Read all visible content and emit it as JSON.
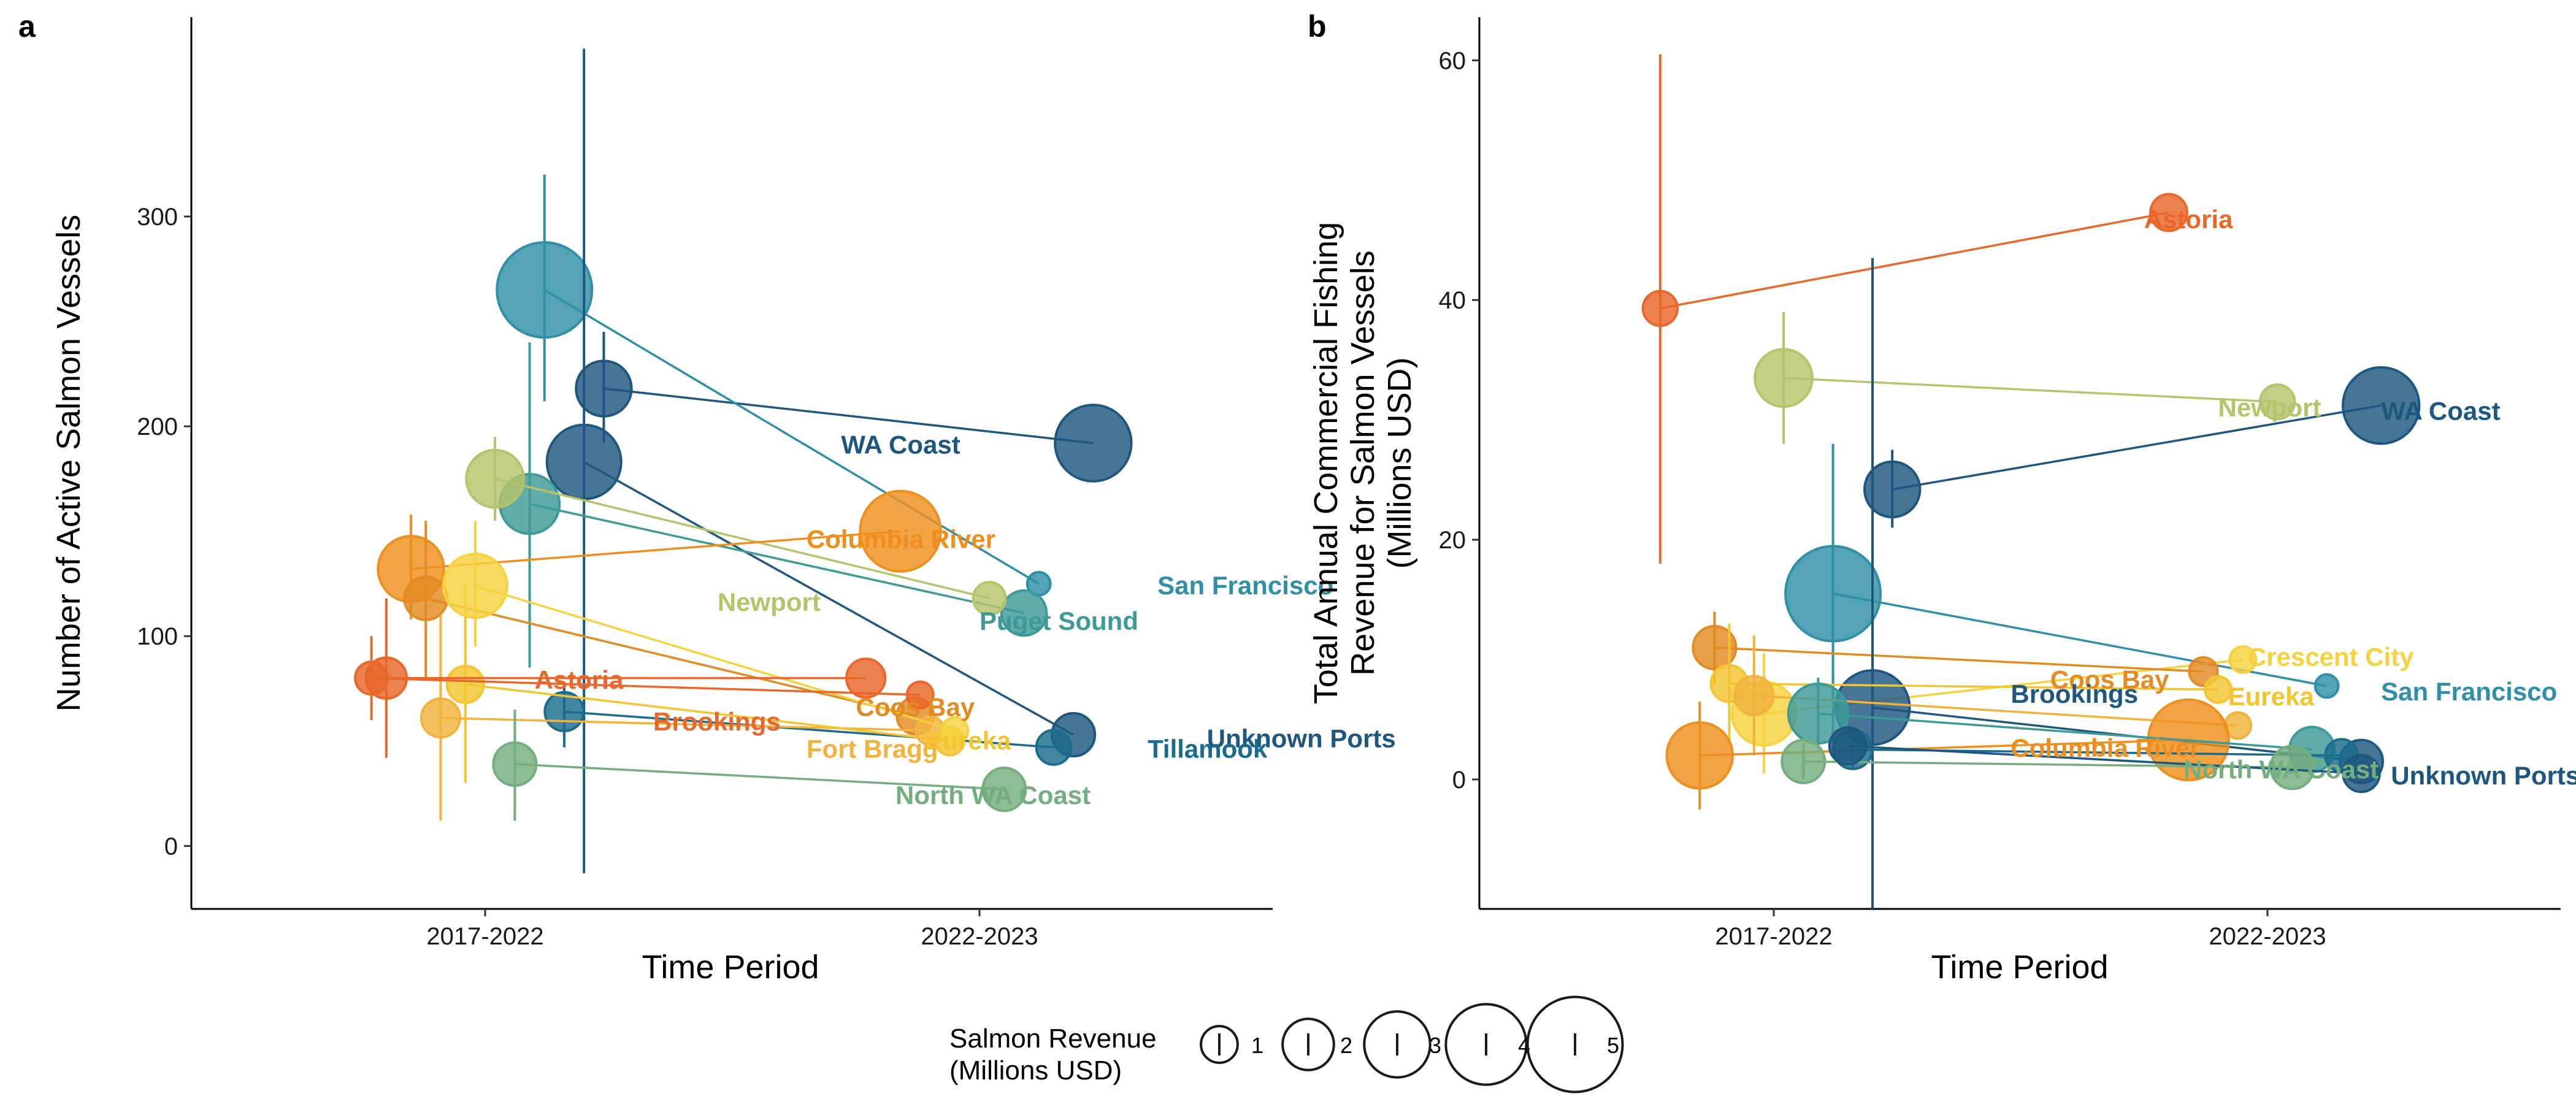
{
  "chart_data": [
    {
      "panel": "a",
      "type": "scatter",
      "xlabel": "Time Period",
      "ylabel": "Number of Active Salmon Vessels",
      "x_categories": [
        "2017-2022",
        "2022-2023"
      ],
      "ylim": [
        -30,
        395
      ],
      "yticks": [
        0,
        100,
        200,
        300
      ],
      "grid": false,
      "series": [
        {
          "name": "WA Coast",
          "color": "#1d5780",
          "label_pos": [
            1.72,
            187
          ],
          "points": [
            {
              "x": 1.24,
              "y": 218,
              "lo": 192,
              "hi": 245,
              "rev": 1.6
            },
            {
              "x": 2.23,
              "y": 192,
              "rev": 2.6
            }
          ]
        },
        {
          "name": "San Francisco",
          "color": "#2e8fa6",
          "label_pos": [
            2.36,
            120
          ],
          "points": [
            {
              "x": 1.12,
              "y": 265,
              "lo": 212,
              "hi": 320,
              "rev": 3.5
            },
            {
              "x": 2.12,
              "y": 125,
              "rev": 0.05
            }
          ]
        },
        {
          "name": "Unknown Ports",
          "color": "#1d5780",
          "label_pos": [
            2.46,
            47
          ],
          "points": [
            {
              "x": 1.2,
              "y": 183,
              "lo": -13,
              "hi": 380,
              "rev": 2.5
            },
            {
              "x": 2.19,
              "y": 53,
              "rev": 1.0
            }
          ]
        },
        {
          "name": "Tillamook",
          "color": "#1b6b8c",
          "label_pos": [
            2.34,
            42
          ],
          "points": [
            {
              "x": 1.16,
              "y": 64,
              "lo": 47,
              "hi": 78,
              "rev": 0.8
            },
            {
              "x": 2.15,
              "y": 47,
              "rev": 0.6
            }
          ]
        },
        {
          "name": "Puget Sound",
          "color": "#3d9a97",
          "label_pos": [
            2.0,
            103
          ],
          "points": [
            {
              "x": 1.09,
              "y": 163,
              "lo": 85,
              "hi": 240,
              "rev": 1.8
            },
            {
              "x": 2.09,
              "y": 111,
              "rev": 1.1
            }
          ]
        },
        {
          "name": "Newport",
          "color": "#b5c46a",
          "label_pos": [
            1.47,
            112
          ],
          "points": [
            {
              "x": 1.02,
              "y": 175,
              "lo": 155,
              "hi": 195,
              "rev": 1.7
            },
            {
              "x": 2.02,
              "y": 118,
              "rev": 0.5
            }
          ]
        },
        {
          "name": "Columbia River",
          "color": "#ee8f1d",
          "label_pos": [
            1.65,
            142
          ],
          "points": [
            {
              "x": 0.85,
              "y": 132,
              "lo": 108,
              "hi": 158,
              "rev": 2.1
            },
            {
              "x": 1.84,
              "y": 150,
              "rev": 2.8
            }
          ]
        },
        {
          "name": "Coos Bay",
          "color": "#e38a22",
          "label_pos": [
            1.75,
            62
          ],
          "points": [
            {
              "x": 0.88,
              "y": 118,
              "lo": 80,
              "hi": 155,
              "rev": 1.0
            },
            {
              "x": 1.87,
              "y": 62,
              "rev": 0.7
            }
          ]
        },
        {
          "name": "Fort Bragg",
          "color": "#f2b33d",
          "label_pos": [
            1.65,
            42
          ],
          "points": [
            {
              "x": 0.91,
              "y": 61,
              "lo": 12,
              "hi": 110,
              "rev": 0.8
            },
            {
              "x": 1.9,
              "y": 55,
              "rev": 0.3
            }
          ]
        },
        {
          "name": "Eureka",
          "color": "#f4c430",
          "label_pos": [
            1.89,
            46
          ],
          "points": [
            {
              "x": 0.96,
              "y": 77,
              "lo": 30,
              "hi": 125,
              "rev": 0.7
            },
            {
              "x": 1.94,
              "y": 50,
              "rev": 0.3
            }
          ]
        },
        {
          "name": "Crescent City",
          "color": "#f6d23f",
          "points": [
            {
              "x": 0.98,
              "y": 124,
              "lo": 95,
              "hi": 155,
              "rev": 2.0
            },
            {
              "x": 1.95,
              "y": 55,
              "rev": 0.2
            }
          ]
        },
        {
          "name": "Astoria",
          "color": "#e8672a",
          "label_pos": [
            1.1,
            75
          ],
          "points": [
            {
              "x": 0.8,
              "y": 80,
              "lo": 42,
              "hi": 118,
              "rev": 0.9
            },
            {
              "x": 1.77,
              "y": 80,
              "rev": 0.8
            }
          ]
        },
        {
          "name": "Brookings",
          "color": "#e8672a",
          "label_pos": [
            1.34,
            55
          ],
          "points": [
            {
              "x": 0.77,
              "y": 80,
              "lo": 60,
              "hi": 100,
              "rev": 0.5
            },
            {
              "x": 1.88,
              "y": 72,
              "rev": 0.2
            }
          ]
        },
        {
          "name": "North WA Coast",
          "color": "#74ad7e",
          "label_pos": [
            1.83,
            20
          ],
          "points": [
            {
              "x": 1.06,
              "y": 39,
              "lo": 12,
              "hi": 65,
              "rev": 1.0
            },
            {
              "x": 2.05,
              "y": 27,
              "rev": 1.0
            }
          ]
        }
      ]
    },
    {
      "panel": "b",
      "type": "scatter",
      "xlabel": "Time Period",
      "ylabel": [
        "Total Annual Commercial Fishing",
        "Revenue for Salmon Vessels",
        "(Millions USD)"
      ],
      "x_categories": [
        "2017-2022",
        "2022-2023"
      ],
      "ylim": [
        -10.8,
        63.6
      ],
      "yticks": [
        0,
        20,
        40,
        60
      ],
      "grid": false,
      "series": [
        {
          "name": "Astoria",
          "color": "#e8672a",
          "label_pos": [
            1.75,
            46.0
          ],
          "points": [
            {
              "x": 0.77,
              "y": 39.3,
              "lo": 18.0,
              "hi": 60.5,
              "rev": 0.6
            },
            {
              "x": 1.8,
              "y": 47.3,
              "rev": 0.7
            }
          ]
        },
        {
          "name": "Newport",
          "color": "#b5c46a",
          "label_pos": [
            1.9,
            30.3
          ],
          "points": [
            {
              "x": 1.02,
              "y": 33.5,
              "lo": 28.0,
              "hi": 39.0,
              "rev": 1.7
            },
            {
              "x": 2.02,
              "y": 31.5,
              "rev": 0.6
            }
          ]
        },
        {
          "name": "WA Coast",
          "color": "#1d5780",
          "label_pos": [
            2.23,
            30.0
          ],
          "points": [
            {
              "x": 1.24,
              "y": 24.2,
              "lo": 21.0,
              "hi": 27.5,
              "rev": 1.6
            },
            {
              "x": 2.23,
              "y": 31.2,
              "rev": 2.6
            }
          ]
        },
        {
          "name": "San Francisco",
          "color": "#2e8fa6",
          "label_pos": [
            2.23,
            6.6
          ],
          "points": [
            {
              "x": 1.12,
              "y": 15.5,
              "lo": 3.0,
              "hi": 28.0,
              "rev": 3.5
            },
            {
              "x": 2.12,
              "y": 7.8,
              "rev": 0.05
            }
          ]
        },
        {
          "name": "Crescent City",
          "color": "#f6d23f",
          "label_pos": [
            1.96,
            9.5
          ],
          "points": [
            {
              "x": 0.98,
              "y": 5.5,
              "lo": 0.5,
              "hi": 10.5,
              "rev": 2.0
            },
            {
              "x": 1.95,
              "y": 10.0,
              "rev": 0.2
            }
          ]
        },
        {
          "name": "Coos Bay",
          "color": "#e38a22",
          "label_pos": [
            1.56,
            7.6
          ],
          "points": [
            {
              "x": 0.88,
              "y": 11.0,
              "lo": 8.0,
              "hi": 14.0,
              "rev": 1.0
            },
            {
              "x": 1.87,
              "y": 9.0,
              "rev": 0.3
            }
          ]
        },
        {
          "name": "Brookings",
          "color": "#1d5780",
          "label_pos": [
            1.48,
            6.4
          ],
          "points": [
            {
              "x": 1.2,
              "y": 6.0,
              "lo": -10.8,
              "hi": 43.5,
              "rev": 2.5
            },
            {
              "x": 2.19,
              "y": 1.5,
              "rev": 1.0
            }
          ]
        },
        {
          "name": "Eureka",
          "color": "#f4c430",
          "label_pos": [
            1.92,
            6.2
          ],
          "points": [
            {
              "x": 0.91,
              "y": 8.0,
              "lo": 3.0,
              "hi": 13.0,
              "rev": 0.7
            },
            {
              "x": 1.9,
              "y": 7.5,
              "rev": 0.2
            }
          ]
        },
        {
          "name": "Fort Bragg",
          "color": "#f2b33d",
          "points": [
            {
              "x": 0.96,
              "y": 7.0,
              "lo": 2.0,
              "hi": 12.0,
              "rev": 0.8
            },
            {
              "x": 1.94,
              "y": 4.5,
              "rev": 0.2
            }
          ]
        },
        {
          "name": "Columbia River",
          "color": "#ee8f1d",
          "label_pos": [
            1.48,
            1.9
          ],
          "points": [
            {
              "x": 0.85,
              "y": 2.0,
              "lo": -2.5,
              "hi": 6.5,
              "rev": 2.1
            },
            {
              "x": 1.84,
              "y": 3.3,
              "rev": 2.8
            }
          ]
        },
        {
          "name": "Puget Sound",
          "color": "#3d9a97",
          "points": [
            {
              "x": 1.09,
              "y": 5.5,
              "lo": 2.5,
              "hi": 8.5,
              "rev": 1.8
            },
            {
              "x": 2.09,
              "y": 2.5,
              "rev": 1.1
            }
          ]
        },
        {
          "name": "Tillamook",
          "color": "#1b6b8c",
          "points": [
            {
              "x": 1.16,
              "y": 2.5,
              "lo": 1.0,
              "hi": 4.0,
              "rev": 0.8
            },
            {
              "x": 2.15,
              "y": 2.0,
              "rev": 0.5
            }
          ]
        },
        {
          "name": "North WA Coast",
          "color": "#74ad7e",
          "label_pos": [
            1.83,
            0.1
          ],
          "points": [
            {
              "x": 1.06,
              "y": 1.5,
              "lo": 0.0,
              "hi": 3.0,
              "rev": 1.0
            },
            {
              "x": 2.05,
              "y": 1.0,
              "rev": 1.0
            }
          ]
        },
        {
          "name": "Unknown Ports",
          "color": "#1d5780",
          "label_pos": [
            2.25,
            -0.4
          ],
          "points": [
            {
              "x": 1.15,
              "y": 2.8,
              "rev": 0.7
            },
            {
              "x": 2.19,
              "y": 0.5,
              "rev": 0.7
            }
          ]
        }
      ]
    }
  ],
  "legend": {
    "title_line1": "Salmon Revenue",
    "title_line2": "(Millions USD)",
    "sizes": [
      1,
      2,
      3,
      4,
      5
    ],
    "labels": [
      "1",
      "2",
      "3",
      "4",
      "5"
    ]
  }
}
